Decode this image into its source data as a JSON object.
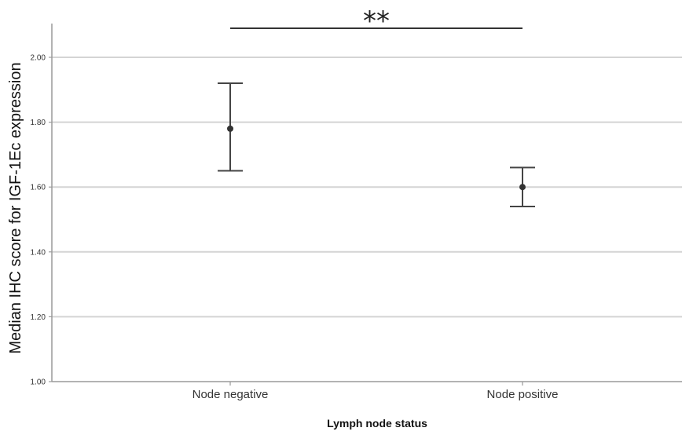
{
  "chart_data": {
    "type": "errorbar",
    "title": "",
    "xlabel": "Lymph node status",
    "ylabel": "Median IHC score for IGF-1Ec expression",
    "ylim": [
      1.0,
      2.1
    ],
    "yticks": [
      1.0,
      1.2,
      1.4,
      1.6,
      1.8,
      2.0
    ],
    "ytick_labels": [
      "1.00",
      "1.20",
      "1.40",
      "1.60",
      "1.80",
      "2.00"
    ],
    "grid": true,
    "categories": [
      "Node negative",
      "Node positive"
    ],
    "series": [
      {
        "values": [
          1.78,
          1.6
        ],
        "lower": [
          1.65,
          1.54
        ],
        "upper": [
          1.92,
          1.66
        ]
      }
    ],
    "annotations": [
      {
        "text": "**",
        "between": [
          "Node negative",
          "Node positive"
        ]
      }
    ]
  }
}
